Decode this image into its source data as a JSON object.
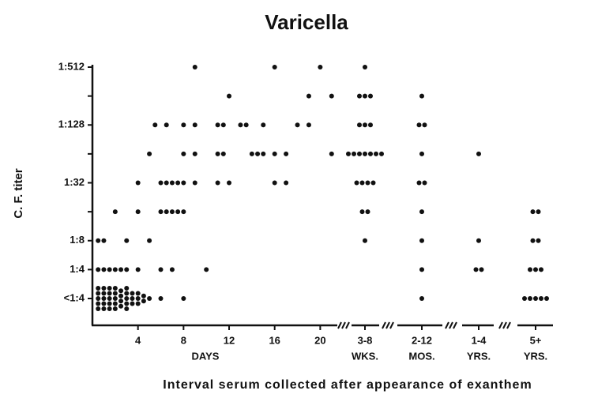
{
  "chart_data": [
    {
      "type": "scatter",
      "title": "Varicella",
      "ylabel": "C. F. titer",
      "xlabel": "Interval serum collected after appearance of exanthem",
      "x_unit_label": "DAYS",
      "color": "#111111",
      "xlim": [
        0,
        21.5
      ],
      "xticks": [
        4,
        8,
        12,
        16,
        20
      ],
      "ylim": [
        0,
        8
      ],
      "yticks": [
        {
          "value": 0,
          "label": "<1:4"
        },
        {
          "value": 1,
          "label": "1:4"
        },
        {
          "value": 2,
          "label": "1:8"
        },
        {
          "value": 4,
          "label": "1:32"
        },
        {
          "value": 6,
          "label": "1:128"
        },
        {
          "value": 8,
          "label": "1:512"
        }
      ],
      "minor_yticks": [
        3,
        5,
        7
      ],
      "x": [
        9,
        16,
        20,
        12,
        19,
        21,
        5.5,
        6.5,
        8,
        9,
        11,
        11.5,
        13,
        13.5,
        15,
        18,
        19,
        5,
        8,
        9,
        11,
        11.5,
        14,
        14.5,
        15,
        16,
        17,
        21,
        4,
        6,
        6.5,
        7,
        7.5,
        8,
        9,
        11,
        12,
        16,
        17,
        2,
        4,
        6,
        6.5,
        7,
        7.5,
        8,
        0.5,
        1,
        3,
        5,
        0.5,
        1,
        1.5,
        2,
        2.5,
        3,
        4,
        6,
        7,
        10,
        0.5,
        0.5,
        0.5,
        0.5,
        0.5,
        1,
        1,
        1,
        1,
        1,
        1.5,
        1.5,
        1.5,
        1.5,
        1.5,
        2,
        2,
        2,
        2,
        2,
        2.5,
        2.5,
        2.5,
        2.5,
        3,
        3,
        3,
        3,
        3,
        3.5,
        3.5,
        3.5,
        4,
        4,
        4,
        4.5,
        4.5,
        5,
        6,
        8
      ],
      "y": [
        8,
        8,
        8,
        7,
        7,
        7,
        6,
        6,
        6,
        6,
        6,
        6,
        6,
        6,
        6,
        6,
        6,
        5,
        5,
        5,
        5,
        5,
        5,
        5,
        5,
        5,
        5,
        5,
        4,
        4,
        4,
        4,
        4,
        4,
        4,
        4,
        4,
        4,
        4,
        3,
        3,
        3,
        3,
        3,
        3,
        3,
        2,
        2,
        2,
        2,
        1,
        1,
        1,
        1,
        1,
        1,
        1,
        1,
        1,
        1,
        0,
        0,
        0,
        0,
        0,
        0,
        0,
        0,
        0,
        0,
        0,
        0,
        0,
        0,
        0,
        0,
        0,
        0,
        0,
        0,
        0,
        0,
        0,
        0,
        0,
        0,
        0,
        0,
        0,
        0,
        0,
        0,
        0,
        0,
        0,
        0,
        0,
        0,
        0,
        0
      ]
    },
    {
      "type": "strip",
      "color": "#111111",
      "categories": [
        [
          "3-8",
          "WKS."
        ],
        [
          "2-12",
          "MOS."
        ],
        [
          "1-4",
          "YRS."
        ],
        [
          "5+",
          "YRS."
        ]
      ],
      "values": [
        [
          8,
          7,
          7,
          7,
          6,
          6,
          6,
          5,
          5,
          5,
          5,
          5,
          5,
          5,
          4,
          4,
          4,
          4,
          3,
          3,
          2
        ],
        [
          7,
          6,
          6,
          5,
          4,
          4,
          3,
          2,
          1,
          0
        ],
        [
          5,
          2,
          1,
          1
        ],
        [
          3,
          3,
          2,
          2,
          1,
          1,
          1,
          0,
          0,
          0,
          0,
          0
        ]
      ]
    }
  ]
}
